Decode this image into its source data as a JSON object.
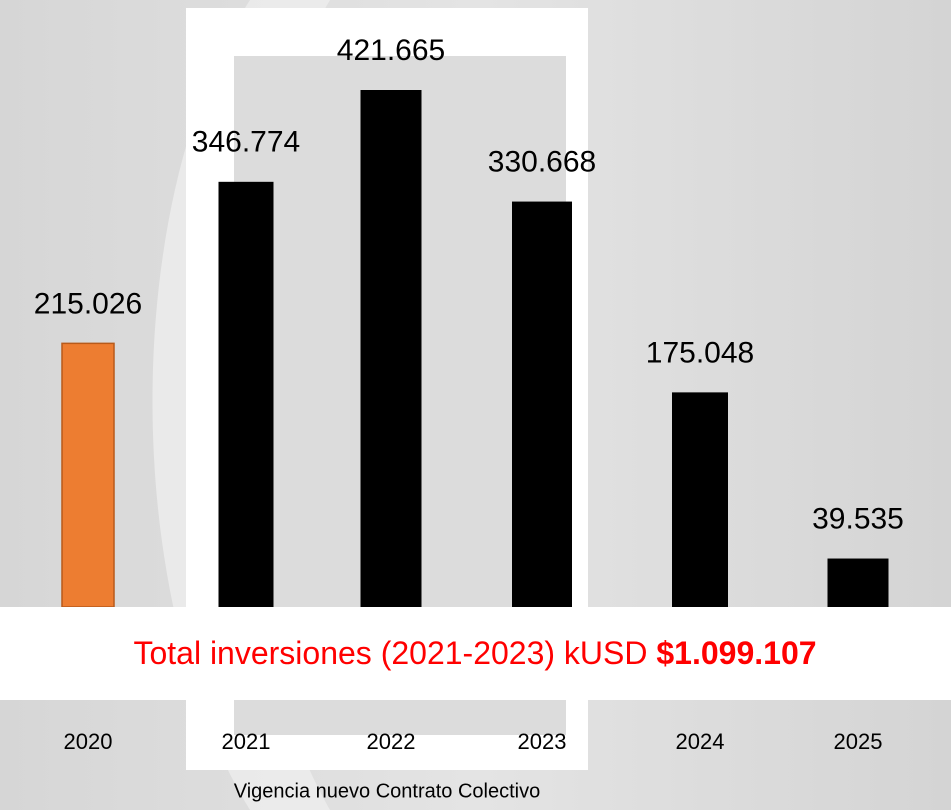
{
  "chart_data": {
    "type": "bar",
    "categories": [
      "2020",
      "2021",
      "2022",
      "2023",
      "2024",
      "2025"
    ],
    "values": [
      215026,
      346774,
      421665,
      330668,
      175048,
      39535
    ],
    "value_labels": [
      "215.026",
      "346.774",
      "421.665",
      "330.668",
      "175.048",
      "39.535"
    ],
    "colors": [
      "#ED7D31",
      "#000000",
      "#000000",
      "#000000",
      "#000000",
      "#000000"
    ],
    "annotation": {
      "text": "Total inversiones (2021-2023) kUSD",
      "total": "$1.099.107"
    },
    "footnote": "Vigencia nuevo Contrato Colectivo"
  }
}
